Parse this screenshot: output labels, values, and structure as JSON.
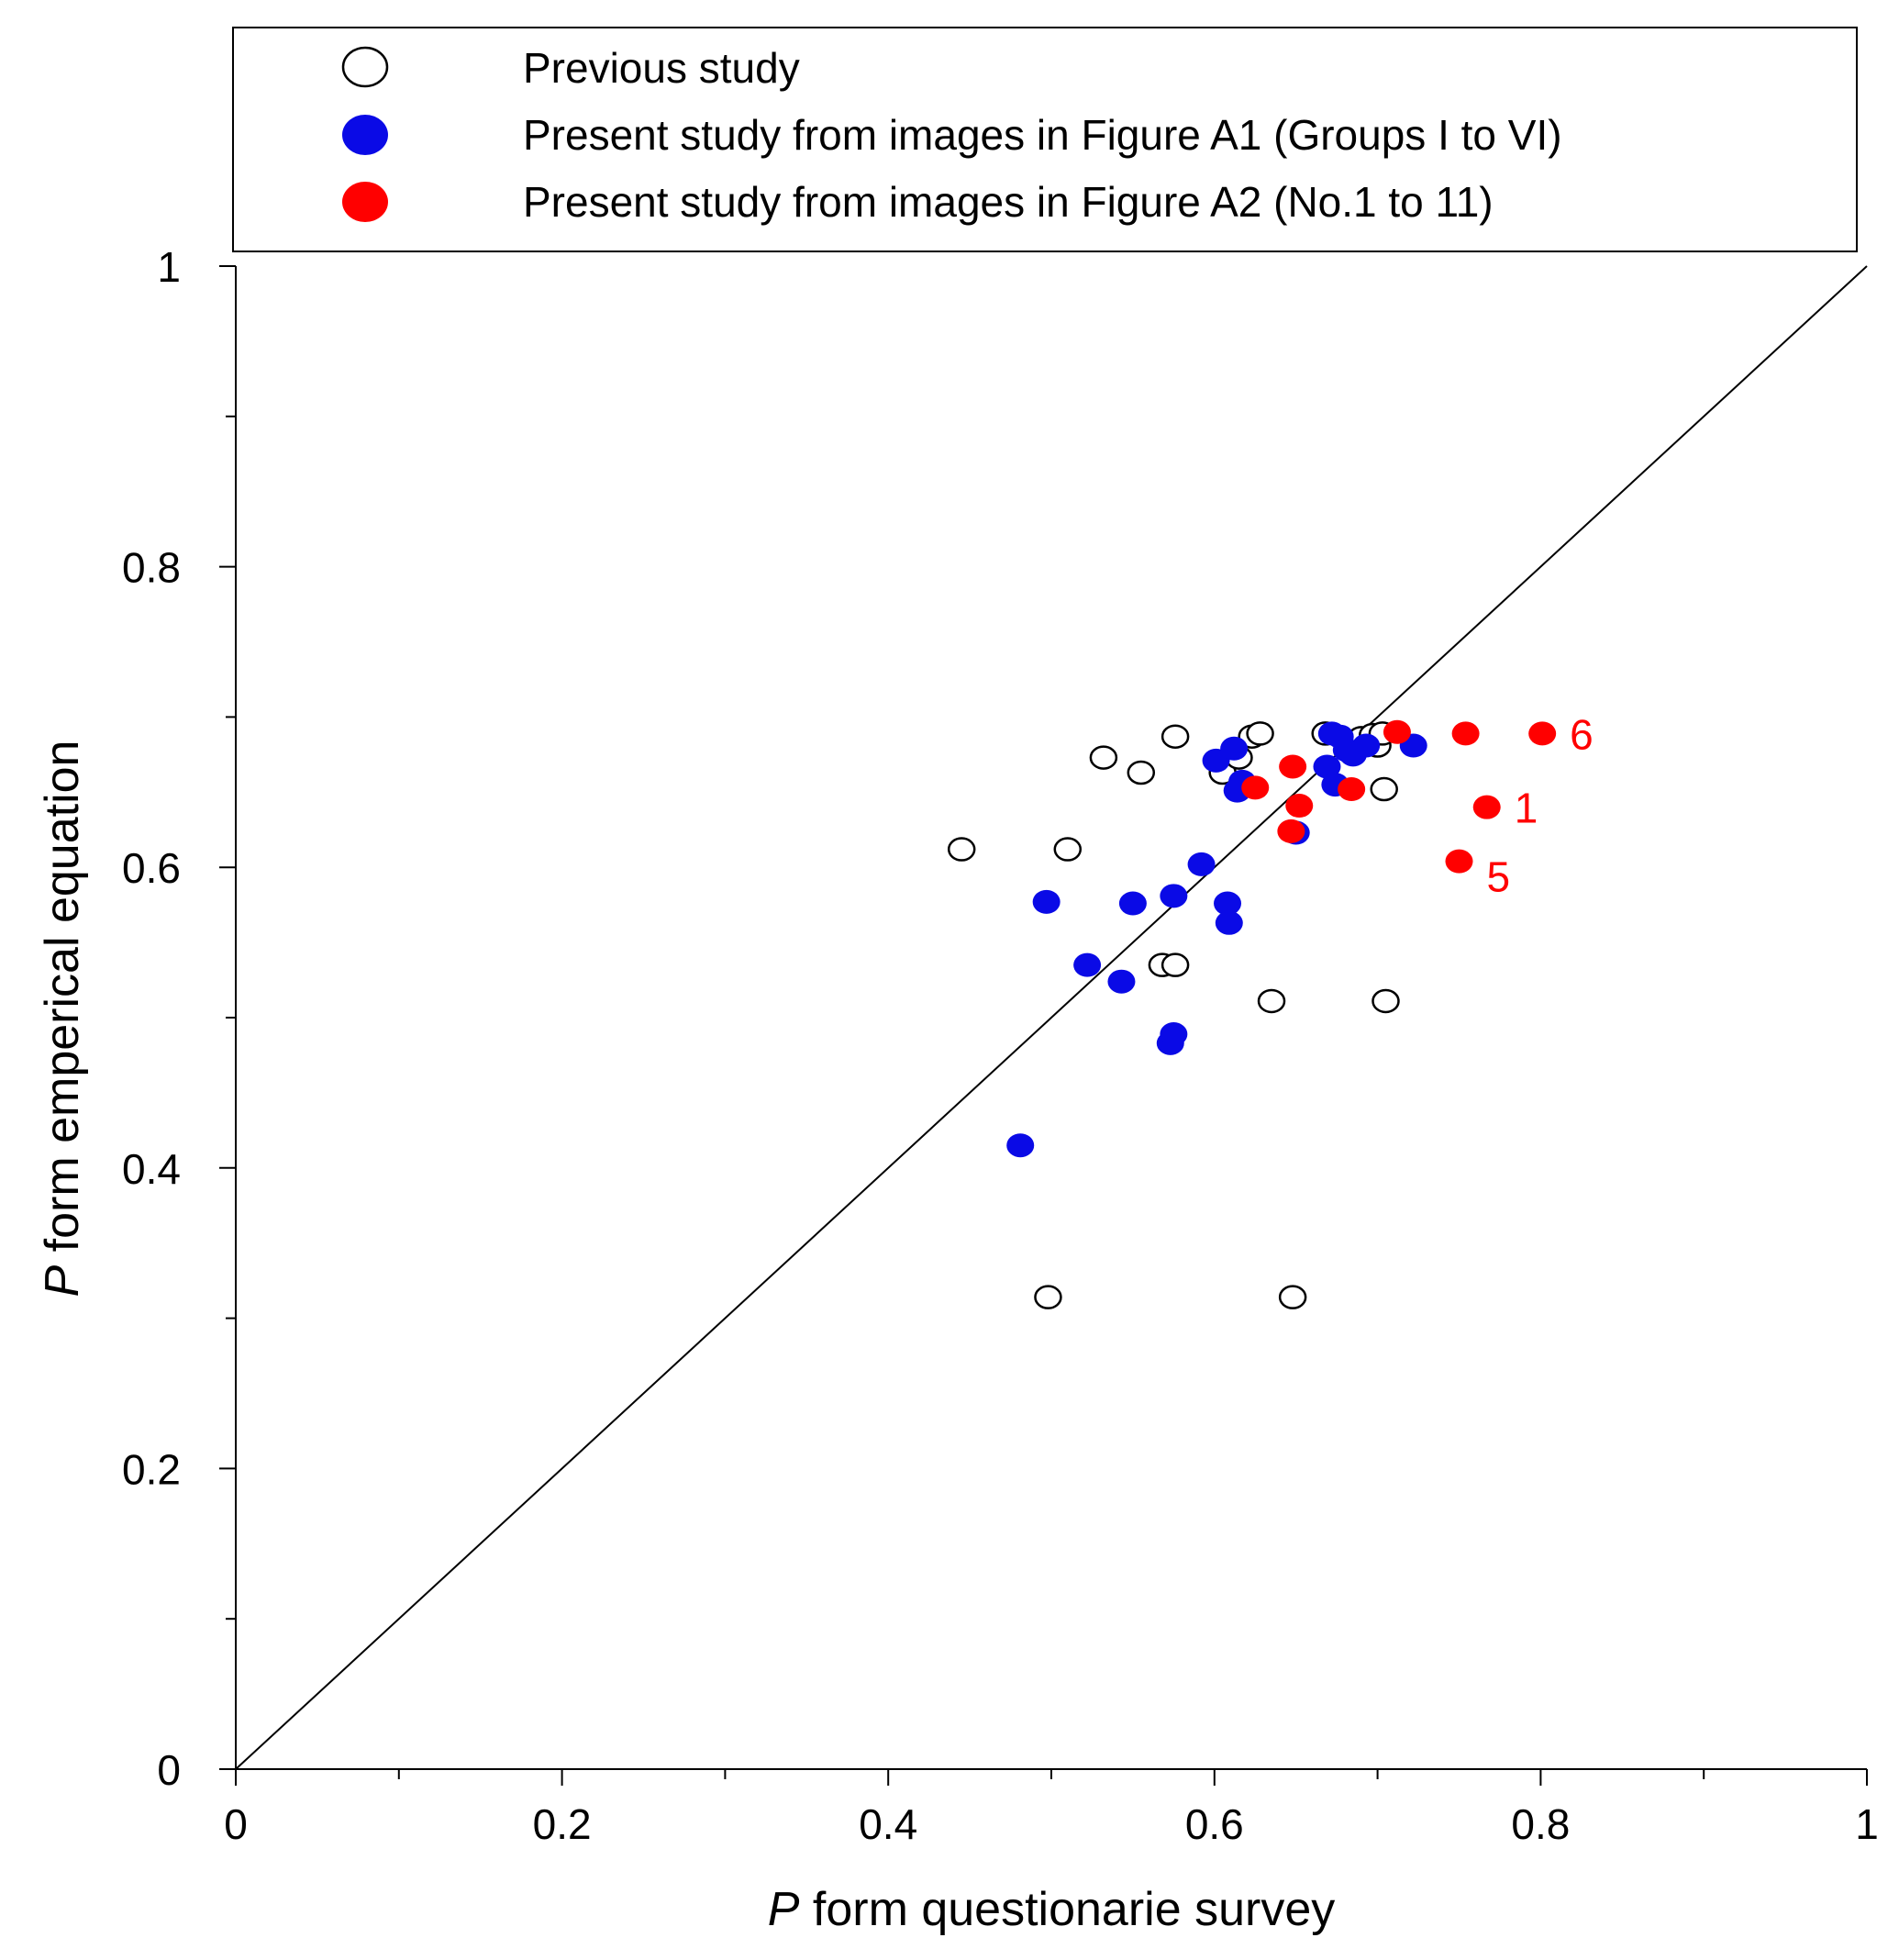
{
  "chart_data": {
    "type": "scatter",
    "xlabel": {
      "italic": "P",
      "rest": " form questionarie survey"
    },
    "ylabel": {
      "italic": "P",
      "rest": " form emperical equation"
    },
    "xlim": [
      0,
      1
    ],
    "ylim": [
      0,
      1
    ],
    "xticks": [
      "0",
      "0.2",
      "0.4",
      "0.6",
      "0.8",
      "1"
    ],
    "yticks": [
      "0",
      "0.2",
      "0.4",
      "0.6",
      "0.8",
      "1"
    ],
    "minor_tick_step": 0.1,
    "reference_line": {
      "type": "y=x",
      "from": [
        0,
        0
      ],
      "to": [
        1,
        1
      ]
    },
    "legend_position": "top",
    "series": [
      {
        "name": "Previous study",
        "marker": "open-circle",
        "color": "#000000",
        "points": [
          [
            0.445,
            0.612
          ],
          [
            0.51,
            0.612
          ],
          [
            0.532,
            0.673
          ],
          [
            0.555,
            0.663
          ],
          [
            0.576,
            0.687
          ],
          [
            0.605,
            0.663
          ],
          [
            0.615,
            0.673
          ],
          [
            0.623,
            0.687
          ],
          [
            0.628,
            0.689
          ],
          [
            0.668,
            0.689
          ],
          [
            0.69,
            0.686
          ],
          [
            0.697,
            0.688
          ],
          [
            0.7,
            0.681
          ],
          [
            0.703,
            0.689
          ],
          [
            0.704,
            0.652
          ],
          [
            0.568,
            0.535
          ],
          [
            0.576,
            0.535
          ],
          [
            0.635,
            0.511
          ],
          [
            0.705,
            0.511
          ],
          [
            0.498,
            0.314
          ],
          [
            0.648,
            0.314
          ]
        ]
      },
      {
        "name": "Present study from images in Figure A1 (Groups I to VI)",
        "marker": "filled-circle",
        "color": "#0a0ae6",
        "points": [
          [
            0.481,
            0.415
          ],
          [
            0.497,
            0.577
          ],
          [
            0.522,
            0.535
          ],
          [
            0.543,
            0.524
          ],
          [
            0.55,
            0.576
          ],
          [
            0.573,
            0.483
          ],
          [
            0.575,
            0.489
          ],
          [
            0.575,
            0.581
          ],
          [
            0.592,
            0.602
          ],
          [
            0.601,
            0.671
          ],
          [
            0.608,
            0.576
          ],
          [
            0.609,
            0.563
          ],
          [
            0.612,
            0.679
          ],
          [
            0.614,
            0.651
          ],
          [
            0.617,
            0.657
          ],
          [
            0.65,
            0.623
          ],
          [
            0.669,
            0.667
          ],
          [
            0.672,
            0.689
          ],
          [
            0.674,
            0.655
          ],
          [
            0.677,
            0.687
          ],
          [
            0.681,
            0.678
          ],
          [
            0.685,
            0.675
          ],
          [
            0.693,
            0.681
          ],
          [
            0.722,
            0.681
          ]
        ]
      },
      {
        "name": "Present study from images in Figure A2 (No.1 to 11)",
        "marker": "filled-circle",
        "color": "#ff0000",
        "points": [
          [
            0.625,
            0.653
          ],
          [
            0.647,
            0.624
          ],
          [
            0.648,
            0.667
          ],
          [
            0.652,
            0.641
          ],
          [
            0.684,
            0.652
          ],
          [
            0.712,
            0.69
          ],
          [
            0.75,
            0.604
          ],
          [
            0.754,
            0.689
          ],
          [
            0.767,
            0.64
          ],
          [
            0.801,
            0.689
          ]
        ]
      }
    ],
    "annotations": [
      {
        "text": "6",
        "x": 0.801,
        "y": 0.689,
        "color": "#ff0000"
      },
      {
        "text": "1",
        "x": 0.767,
        "y": 0.64,
        "color": "#ff0000"
      },
      {
        "text": "5",
        "x": 0.75,
        "y": 0.604,
        "color": "#ff0000"
      }
    ]
  }
}
